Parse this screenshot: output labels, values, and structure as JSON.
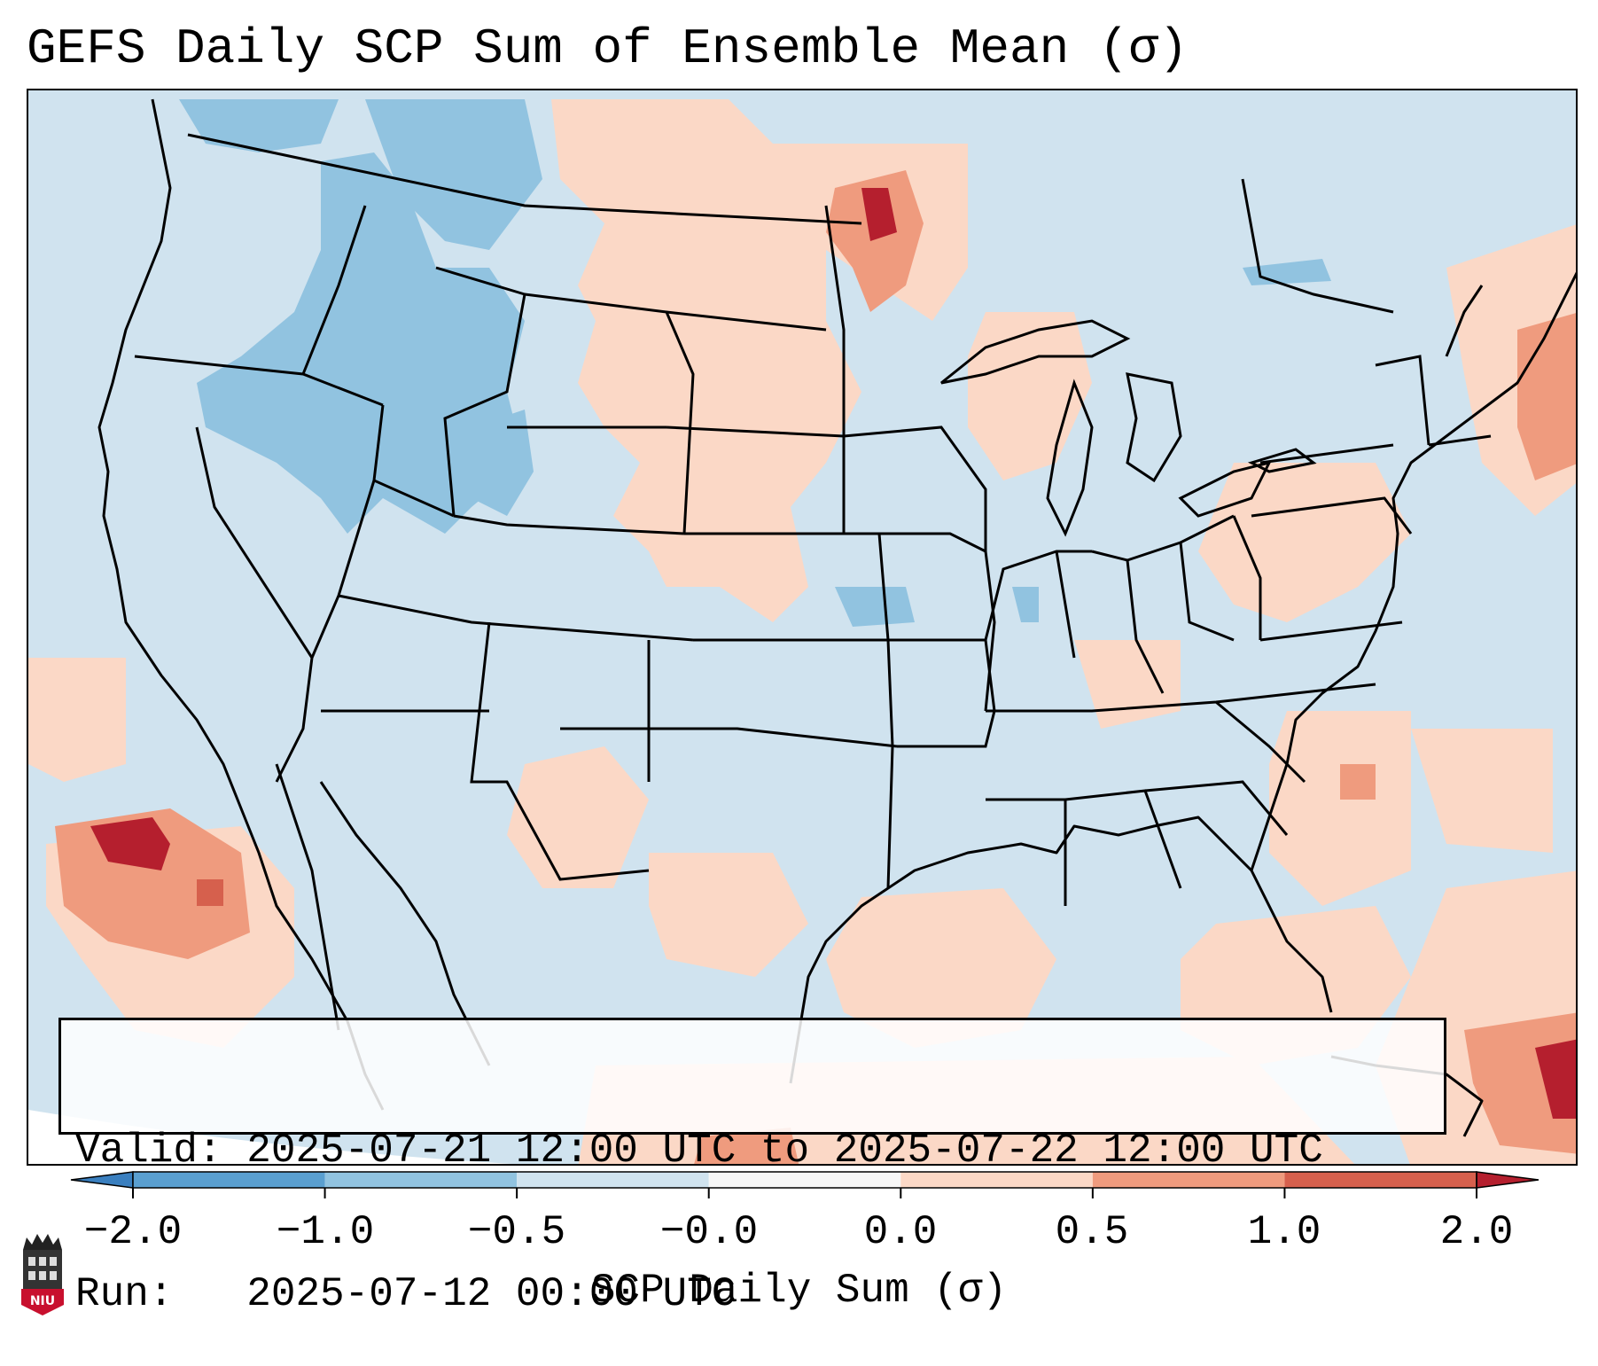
{
  "title": "GEFS Daily SCP Sum of Ensemble Mean (σ)",
  "map": {
    "region": "Continental United States",
    "background_color": "#d0e3ef",
    "info_box": {
      "valid_line": "Valid: 2025-07-21 12:00 UTC to 2025-07-22 12:00 UTC",
      "run_line": "Run:   2025-07-12 00:00 UTC"
    }
  },
  "colorbar": {
    "label": "SCP Daily Sum (σ)",
    "ticks": [
      "−2.0",
      "−1.0",
      "−0.5",
      "−0.0",
      "0.0",
      "0.5",
      "1.0",
      "2.0"
    ],
    "colors": [
      "#3a7fbf",
      "#5a9fd0",
      "#91c3e0",
      "#d0e3ef",
      "#f7f7f7",
      "#fbd8c6",
      "#ef9b7e",
      "#d6604d",
      "#b51f2e"
    ]
  },
  "logo": {
    "text": "NIU",
    "color": "#c8102e"
  }
}
